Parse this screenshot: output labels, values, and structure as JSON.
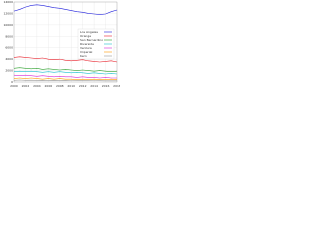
{
  "chart_data": {
    "type": "line",
    "x": [
      2000,
      2001,
      2002,
      2003,
      2004,
      2005,
      2006,
      2007,
      2008,
      2009,
      2010,
      2011,
      2012,
      2013,
      2014,
      2015,
      2016,
      2017,
      2018
    ],
    "series": [
      {
        "name": "Los Angeles",
        "color": "#1f1fdc",
        "values": [
          12400,
          12700,
          13100,
          13400,
          13500,
          13400,
          13200,
          13000,
          12900,
          12700,
          12500,
          12300,
          12200,
          12000,
          11900,
          11800,
          11900,
          12300,
          12600
        ]
      },
      {
        "name": "Orange",
        "color": "#e8202a",
        "values": [
          4300,
          4400,
          4300,
          4200,
          4100,
          4200,
          4000,
          3900,
          4000,
          3800,
          3700,
          3800,
          3900,
          3700,
          3600,
          3500,
          3600,
          3700,
          3500
        ]
      },
      {
        "name": "San Bernardino",
        "color": "#2ca02c",
        "values": [
          2400,
          2500,
          2400,
          2300,
          2400,
          2200,
          2300,
          2200,
          2100,
          2200,
          2100,
          2000,
          2100,
          2000,
          1900,
          2000,
          1900,
          1800,
          1900
        ]
      },
      {
        "name": "Riverside",
        "color": "#17becf",
        "values": [
          1800,
          1900,
          1800,
          1900,
          1800,
          1700,
          1800,
          1700,
          1800,
          1700,
          1600,
          1700,
          1600,
          1500,
          1600,
          1500,
          1400,
          1500,
          1400
        ]
      },
      {
        "name": "Ventura",
        "color": "#d62ad6",
        "values": [
          1200,
          1100,
          1200,
          1100,
          1000,
          1100,
          1000,
          900,
          1000,
          900,
          900,
          800,
          900,
          800,
          800,
          700,
          800,
          700,
          700
        ]
      },
      {
        "name": "Imperial",
        "color": "#ff9900",
        "values": [
          600,
          700,
          600,
          700,
          600,
          500,
          600,
          500,
          600,
          500,
          500,
          400,
          500,
          400,
          500,
          400,
          400,
          500,
          400
        ]
      },
      {
        "name": "Kern",
        "color": "#999999",
        "values": [
          300,
          350,
          300,
          320,
          280,
          300,
          260,
          280,
          250,
          270,
          240,
          250,
          230,
          240,
          220,
          230,
          210,
          220,
          200
        ]
      }
    ],
    "xlim": [
      2000,
      2018
    ],
    "xticks": [
      2000,
      2002,
      2004,
      2006,
      2008,
      2010,
      2012,
      2014,
      2016,
      2018
    ],
    "ylim": [
      0,
      14000
    ],
    "yticks": [
      0,
      2000,
      4000,
      6000,
      8000,
      10000,
      12000,
      14000
    ],
    "grid": true,
    "legend": "right"
  }
}
